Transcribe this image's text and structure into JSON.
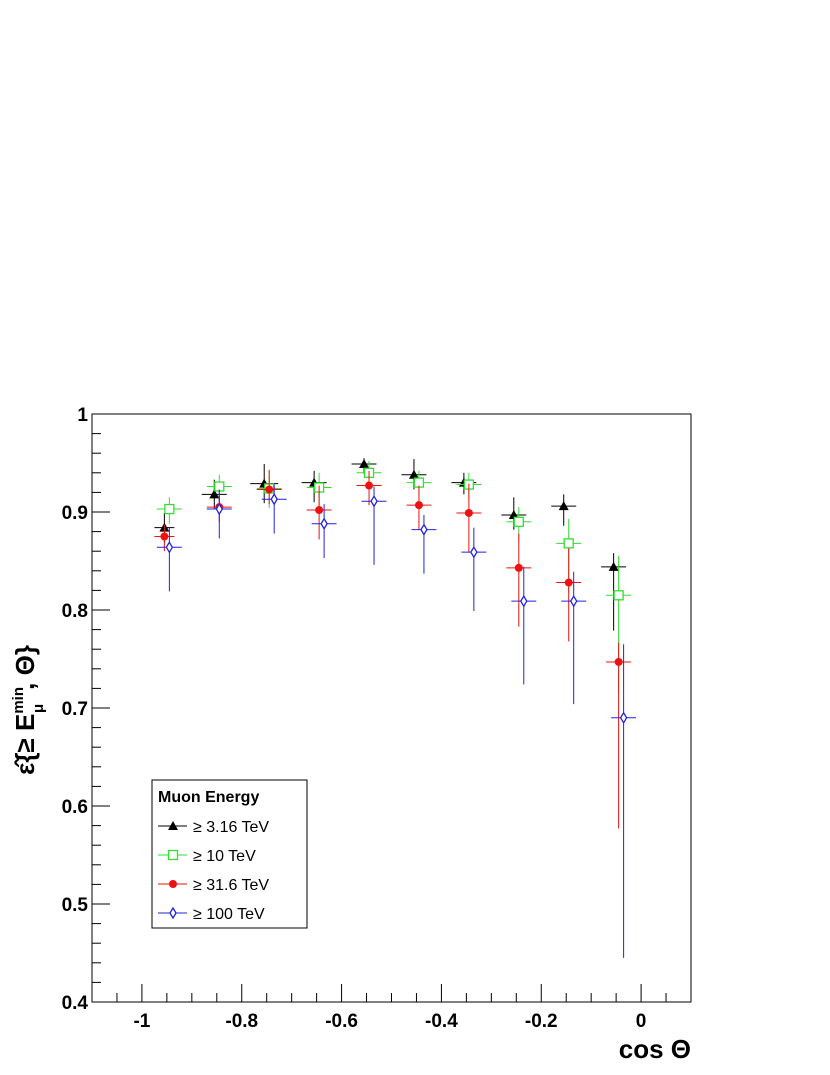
{
  "chart_data": {
    "type": "scatter",
    "xlabel": "cos Θ",
    "ylabel": "ε̂{≥ E_μ^min, Θ}",
    "ylabel_parts": {
      "symbol": "ε̂",
      "open": "{",
      "geq": "≥ ",
      "E": "E",
      "sup": "min",
      "sub": "μ",
      "sep": ", Θ",
      "close": "}"
    },
    "xlim": [
      -1.1,
      0.1
    ],
    "ylim": [
      0.4,
      1.0
    ],
    "x_ticks": [
      {
        "value": -1,
        "label": "-1"
      },
      {
        "value": -0.8,
        "label": "-0.8"
      },
      {
        "value": -0.6,
        "label": "-0.6"
      },
      {
        "value": -0.4,
        "label": "-0.4"
      },
      {
        "value": -0.2,
        "label": "-0.2"
      },
      {
        "value": 0,
        "label": "0"
      }
    ],
    "y_ticks": [
      {
        "value": 0.4,
        "label": "0.4"
      },
      {
        "value": 0.5,
        "label": "0.5"
      },
      {
        "value": 0.6,
        "label": "0.6"
      },
      {
        "value": 0.7,
        "label": "0.7"
      },
      {
        "value": 0.8,
        "label": "0.8"
      },
      {
        "value": 0.9,
        "label": "0.9"
      },
      {
        "value": 1.0,
        "label": "1"
      }
    ],
    "grid": false,
    "legend": {
      "title": "Muon Energy",
      "placement": "bottom-left"
    },
    "series": [
      {
        "name": "≥ 3.16 TeV",
        "color": "#000000",
        "marker": "triangle-filled",
        "x": [
          -0.955,
          -0.855,
          -0.755,
          -0.655,
          -0.555,
          -0.455,
          -0.355,
          -0.255,
          -0.155,
          -0.055
        ],
        "x_err": [
          0.02,
          0.025,
          0.028,
          0.025,
          0.025,
          0.025,
          0.025,
          0.025,
          0.025,
          0.025
        ],
        "y": [
          0.884,
          0.918,
          0.929,
          0.93,
          0.949,
          0.938,
          0.93,
          0.897,
          0.906,
          0.844
        ],
        "y_err_low": [
          0.015,
          0.015,
          0.02,
          0.02,
          0.01,
          0.015,
          0.012,
          0.015,
          0.02,
          0.065
        ],
        "y_err_high": [
          0.015,
          0.015,
          0.02,
          0.012,
          0.006,
          0.016,
          0.01,
          0.018,
          0.012,
          0.014
        ]
      },
      {
        "name": "≥ 10 TeV",
        "color": "#33dd33",
        "marker": "square-open",
        "x": [
          -0.945,
          -0.845,
          -0.745,
          -0.645,
          -0.545,
          -0.445,
          -0.345,
          -0.245,
          -0.145,
          -0.045
        ],
        "x_err": [
          0.025,
          0.025,
          0.025,
          0.025,
          0.025,
          0.025,
          0.025,
          0.025,
          0.025,
          0.025
        ],
        "y": [
          0.903,
          0.926,
          0.924,
          0.925,
          0.94,
          0.93,
          0.928,
          0.89,
          0.868,
          0.815
        ],
        "y_err_low": [
          0.015,
          0.015,
          0.02,
          0.02,
          0.015,
          0.015,
          0.015,
          0.02,
          0.05,
          0.1
        ],
        "y_err_high": [
          0.012,
          0.012,
          0.018,
          0.015,
          0.012,
          0.012,
          0.012,
          0.015,
          0.025,
          0.04
        ]
      },
      {
        "name": "≥ 31.6 TeV",
        "color": "#ee1111",
        "marker": "circle-filled",
        "x": [
          -0.955,
          -0.845,
          -0.745,
          -0.645,
          -0.545,
          -0.445,
          -0.345,
          -0.245,
          -0.145,
          -0.045
        ],
        "x_err": [
          0.02,
          0.025,
          0.025,
          0.025,
          0.025,
          0.025,
          0.025,
          0.025,
          0.025,
          0.025
        ],
        "y": [
          0.875,
          0.905,
          0.923,
          0.902,
          0.927,
          0.907,
          0.899,
          0.843,
          0.828,
          0.747
        ],
        "y_err_low": [
          0.015,
          0.015,
          0.015,
          0.03,
          0.02,
          0.025,
          0.04,
          0.06,
          0.06,
          0.17
        ],
        "y_err_high": [
          0.012,
          0.012,
          0.02,
          0.025,
          0.015,
          0.02,
          0.03,
          0.035,
          0.035,
          0.02
        ]
      },
      {
        "name": "≥ 100 TeV",
        "color": "#2222dd",
        "marker": "diamond-open",
        "x": [
          -0.945,
          -0.845,
          -0.735,
          -0.635,
          -0.535,
          -0.435,
          -0.335,
          -0.235,
          -0.135,
          -0.035
        ],
        "x_err": [
          0.025,
          0.025,
          0.025,
          0.025,
          0.025,
          0.025,
          0.025,
          0.025,
          0.025,
          0.025
        ],
        "y": [
          0.864,
          0.903,
          0.913,
          0.888,
          0.911,
          0.882,
          0.859,
          0.809,
          0.809,
          0.69
        ],
        "y_err_low": [
          0.045,
          0.03,
          0.035,
          0.035,
          0.065,
          0.045,
          0.06,
          0.085,
          0.105,
          0.245
        ],
        "y_err_high": [
          0.02,
          0.02,
          0.015,
          0.02,
          0.015,
          0.015,
          0.025,
          0.035,
          0.03,
          0.075
        ]
      }
    ]
  }
}
